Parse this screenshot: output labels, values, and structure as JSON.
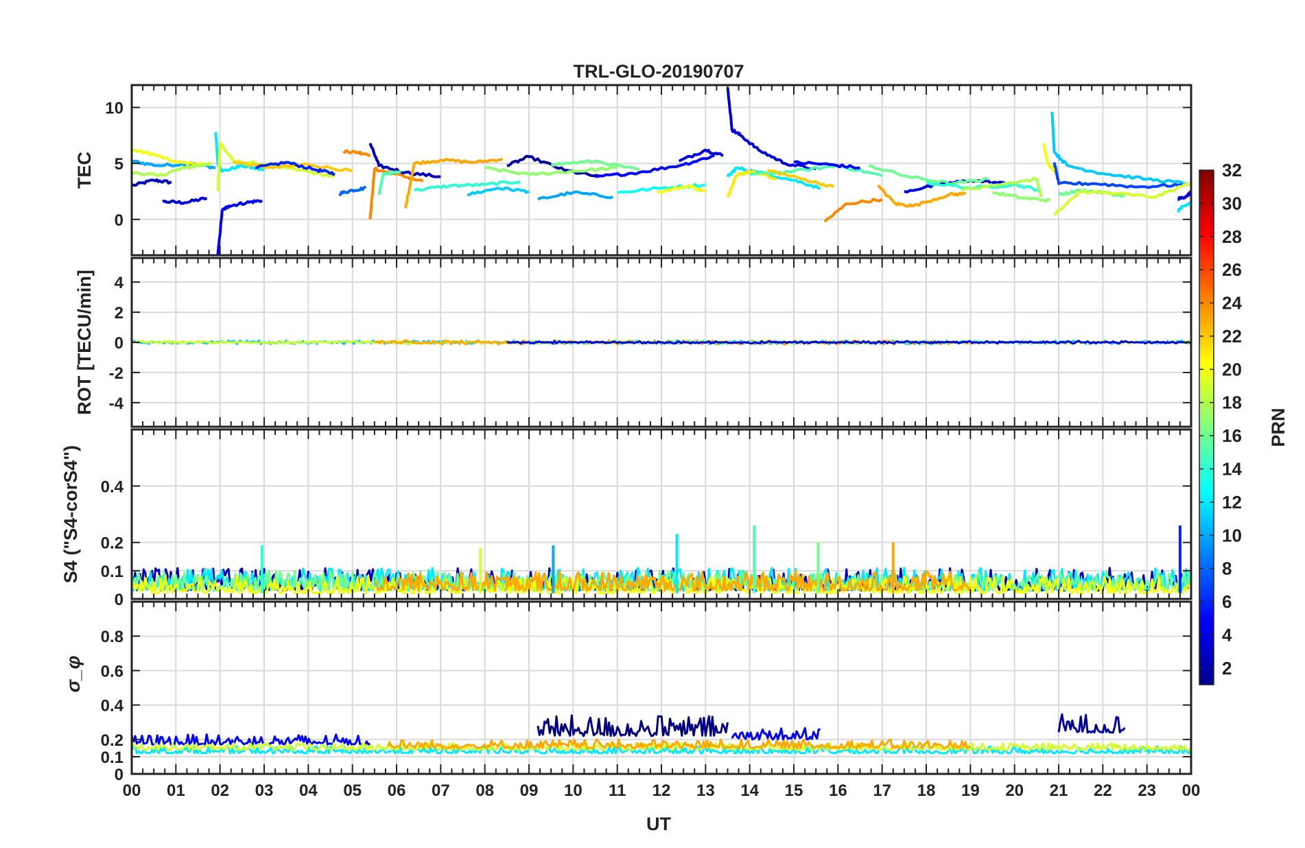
{
  "chart_data": {
    "type": "line",
    "title": "TRL-GLO-20190707",
    "xlabel": "UT",
    "x_tick_labels": [
      "00",
      "01",
      "02",
      "03",
      "04",
      "05",
      "06",
      "07",
      "08",
      "09",
      "10",
      "11",
      "12",
      "13",
      "14",
      "15",
      "16",
      "17",
      "18",
      "19",
      "20",
      "21",
      "22",
      "23",
      "00"
    ],
    "xlim": [
      0,
      24
    ],
    "grid": true,
    "panels": [
      {
        "name": "tec",
        "ylabel": "TEC",
        "ylim": [
          -3.2,
          12
        ],
        "yticks": [
          0,
          5,
          10
        ],
        "ytick_labels": [
          "0",
          "5",
          "10"
        ],
        "series": [
          {
            "prn": 3,
            "x": [
              0.0,
              0.5,
              0.9
            ],
            "y": [
              3.0,
              3.5,
              3.3
            ]
          },
          {
            "prn": 4,
            "x": [
              0.7,
              1.2,
              1.7
            ],
            "y": [
              1.6,
              1.5,
              1.9
            ]
          },
          {
            "prn": 10,
            "x": [
              0.0,
              0.6,
              1.4,
              1.9
            ],
            "y": [
              5.2,
              4.8,
              5.0,
              4.6
            ]
          },
          {
            "prn": 20,
            "x": [
              0.0,
              0.5,
              1.0,
              1.8
            ],
            "y": [
              6.2,
              5.8,
              5.1,
              4.9
            ]
          },
          {
            "prn": 18,
            "x": [
              0.0,
              0.6,
              1.2,
              1.8
            ],
            "y": [
              4.2,
              3.9,
              4.6,
              5.0
            ]
          },
          {
            "prn": 12,
            "x": [
              1.9,
              1.95,
              2.05,
              2.5,
              3.0
            ],
            "y": [
              7.8,
              5.0,
              4.3,
              4.8,
              4.4
            ]
          },
          {
            "prn": 19,
            "x": [
              1.95,
              2.0,
              2.3,
              3.0,
              3.8,
              4.6
            ],
            "y": [
              2.5,
              6.8,
              5.2,
              4.9,
              4.4,
              3.8
            ]
          },
          {
            "prn": 5,
            "x": [
              1.95,
              2.05,
              2.2,
              2.6,
              2.95
            ],
            "y": [
              -3.2,
              0.8,
              1.2,
              1.5,
              1.7
            ]
          },
          {
            "prn": 22,
            "x": [
              2.3,
              3.2,
              4.0,
              5.0
            ],
            "y": [
              5.1,
              4.6,
              4.9,
              4.3
            ]
          },
          {
            "prn": 6,
            "x": [
              2.8,
              3.5,
              4.2,
              4.6
            ],
            "y": [
              4.6,
              5.1,
              4.4,
              4.1
            ]
          },
          {
            "prn": 8,
            "x": [
              4.7,
              5.0,
              5.3
            ],
            "y": [
              2.3,
              2.6,
              2.8
            ]
          },
          {
            "prn": 24,
            "x": [
              4.8,
              5.1,
              5.4
            ],
            "y": [
              6.1,
              6.0,
              5.8
            ]
          },
          {
            "prn": 24,
            "x": [
              5.4,
              5.5,
              5.9,
              6.6
            ],
            "y": [
              0.0,
              4.5,
              4.1,
              3.4
            ]
          },
          {
            "prn": 3,
            "x": [
              5.4,
              5.6,
              6.2,
              7.0
            ],
            "y": [
              6.8,
              4.8,
              4.2,
              3.8
            ]
          },
          {
            "prn": 15,
            "x": [
              5.6,
              5.7,
              6.1
            ],
            "y": [
              2.2,
              4.1,
              4.2
            ]
          },
          {
            "prn": 23,
            "x": [
              6.2,
              6.4,
              7.0,
              7.8,
              8.4
            ],
            "y": [
              1.0,
              5.0,
              5.3,
              5.1,
              5.4
            ]
          },
          {
            "prn": 14,
            "x": [
              6.4,
              7.2,
              8.0,
              8.8
            ],
            "y": [
              2.6,
              3.0,
              3.1,
              3.4
            ]
          },
          {
            "prn": 11,
            "x": [
              7.6,
              8.3,
              9.0
            ],
            "y": [
              2.2,
              2.8,
              2.5
            ]
          },
          {
            "prn": 2,
            "x": [
              8.5,
              9.0,
              9.8,
              10.6
            ],
            "y": [
              4.8,
              5.6,
              4.4,
              3.8
            ]
          },
          {
            "prn": 17,
            "x": [
              8.0,
              9.0,
              10.0,
              11.0
            ],
            "y": [
              4.6,
              4.0,
              4.3,
              4.6
            ]
          },
          {
            "prn": 10,
            "x": [
              9.2,
              10.0,
              10.9
            ],
            "y": [
              1.8,
              2.4,
              2.0
            ]
          },
          {
            "prn": 16,
            "x": [
              9.5,
              10.5,
              11.5
            ],
            "y": [
              4.9,
              5.2,
              4.4
            ]
          },
          {
            "prn": 5,
            "x": [
              10.5,
              11.5,
              12.5,
              13.2
            ],
            "y": [
              3.8,
              4.2,
              4.9,
              5.7
            ]
          },
          {
            "prn": 13,
            "x": [
              11.0,
              12.0,
              13.0
            ],
            "y": [
              2.4,
              2.8,
              3.1
            ]
          },
          {
            "prn": 20,
            "x": [
              11.9,
              12.6,
              13.0
            ],
            "y": [
              2.4,
              3.0,
              2.5
            ]
          },
          {
            "prn": 4,
            "x": [
              12.4,
              13.0,
              13.4
            ],
            "y": [
              5.2,
              6.2,
              5.7
            ]
          },
          {
            "prn": 4,
            "x": [
              13.5,
              13.6,
              13.8,
              14.2,
              14.8,
              15.5
            ],
            "y": [
              11.8,
              8.0,
              7.5,
              6.2,
              5.0,
              4.5
            ]
          },
          {
            "prn": 12,
            "x": [
              13.5,
              13.7,
              14.2,
              15.0,
              15.6
            ],
            "y": [
              3.8,
              4.6,
              4.2,
              3.5,
              2.8
            ]
          },
          {
            "prn": 21,
            "x": [
              13.5,
              13.7,
              14.0,
              14.6
            ],
            "y": [
              2.0,
              3.9,
              4.3,
              3.6
            ]
          },
          {
            "prn": 15,
            "x": [
              14.0,
              15.0,
              16.0,
              17.0
            ],
            "y": [
              4.0,
              4.3,
              4.8,
              3.9
            ]
          },
          {
            "prn": 22,
            "x": [
              14.4,
              15.2,
              15.9
            ],
            "y": [
              4.4,
              3.6,
              2.9
            ]
          },
          {
            "prn": 5,
            "x": [
              15.0,
              15.8,
              16.5
            ],
            "y": [
              5.1,
              4.9,
              4.6
            ]
          },
          {
            "prn": 24,
            "x": [
              15.7,
              16.2,
              17.0
            ],
            "y": [
              -0.2,
              1.4,
              1.8
            ]
          },
          {
            "prn": 23,
            "x": [
              16.9,
              17.3,
              17.7,
              18.5,
              18.9
            ],
            "y": [
              3.0,
              1.4,
              1.2,
              2.2,
              2.3
            ]
          },
          {
            "prn": 4,
            "x": [
              17.5,
              18.3,
              19.0,
              19.8
            ],
            "y": [
              2.5,
              3.1,
              3.5,
              3.2
            ]
          },
          {
            "prn": 16,
            "x": [
              16.7,
              17.6,
              18.6,
              19.4
            ],
            "y": [
              4.8,
              3.8,
              3.2,
              3.6
            ]
          },
          {
            "prn": 14,
            "x": [
              18.0,
              19.0,
              20.0,
              20.6
            ],
            "y": [
              3.3,
              2.8,
              3.1,
              2.6
            ]
          },
          {
            "prn": 18,
            "x": [
              18.8,
              19.6,
              20.5,
              20.6
            ],
            "y": [
              2.6,
              3.1,
              3.6,
              2.0
            ]
          },
          {
            "prn": 17,
            "x": [
              19.5,
              20.2,
              20.8
            ],
            "y": [
              2.4,
              1.9,
              1.7
            ]
          },
          {
            "prn": 20,
            "x": [
              20.65,
              20.75,
              20.9
            ],
            "y": [
              6.8,
              5.0,
              4.4
            ]
          },
          {
            "prn": 11,
            "x": [
              20.85,
              20.9,
              21.2,
              22.0,
              23.0,
              23.9
            ],
            "y": [
              9.6,
              6.0,
              4.8,
              4.1,
              3.6,
              3.2
            ]
          },
          {
            "prn": 7,
            "x": [
              20.9,
              21.0,
              21.8,
              22.8,
              23.8
            ],
            "y": [
              5.1,
              3.2,
              3.2,
              2.9,
              3.1
            ]
          },
          {
            "prn": 16,
            "x": [
              21.0,
              21.5,
              22.0,
              22.5
            ],
            "y": [
              2.2,
              2.6,
              2.4,
              2.1
            ]
          },
          {
            "prn": 19,
            "x": [
              20.9,
              21.5,
              22.3,
              23.2,
              24.0
            ],
            "y": [
              0.4,
              2.5,
              2.3,
              2.0,
              3.3
            ]
          },
          {
            "prn": 4,
            "x": [
              23.7,
              23.9,
              24.0
            ],
            "y": [
              1.8,
              2.1,
              2.4
            ]
          },
          {
            "prn": 12,
            "x": [
              23.7,
              23.85,
              24.0
            ],
            "y": [
              0.8,
              1.2,
              1.5
            ]
          }
        ]
      },
      {
        "name": "rot",
        "ylabel": "ROT [TECU/min]",
        "ylim": [
          -5.6,
          5.6
        ],
        "yticks": [
          -4,
          -2,
          0,
          2,
          4
        ],
        "ytick_labels": [
          "-4",
          "-2",
          "0",
          "2",
          "4"
        ],
        "noise_bands": [
          {
            "prn": 11,
            "x_start": 0.0,
            "x_end": 24.0,
            "baseline": 0.0,
            "amplitude": 0.12
          },
          {
            "prn": 19,
            "x_start": 0.0,
            "x_end": 24.0,
            "baseline": 0.0,
            "amplitude": 0.1
          },
          {
            "prn": 23,
            "x_start": 5.5,
            "x_end": 19.0,
            "baseline": 0.0,
            "amplitude": 0.15
          },
          {
            "prn": 16,
            "x_start": 9.0,
            "x_end": 21.0,
            "baseline": 0.0,
            "amplitude": 0.1
          },
          {
            "prn": 4,
            "x_start": 8.5,
            "x_end": 24.0,
            "baseline": 0.0,
            "amplitude": 0.08
          }
        ]
      },
      {
        "name": "s4",
        "ylabel": "S4 (\"S4-corS4\")",
        "ylim": [
          0,
          0.6
        ],
        "yticks": [
          0,
          0.1,
          0.2,
          0.4
        ],
        "ytick_labels": [
          "0",
          "0.1",
          "0.2",
          "0.4"
        ],
        "noise_bands": [
          {
            "prn": 3,
            "x_start": 0.0,
            "x_end": 24.0,
            "baseline": 0.03,
            "amplitude": 0.08
          },
          {
            "prn": 12,
            "x_start": 0.0,
            "x_end": 24.0,
            "baseline": 0.03,
            "amplitude": 0.08
          },
          {
            "prn": 16,
            "x_start": 0.0,
            "x_end": 24.0,
            "baseline": 0.03,
            "amplitude": 0.07
          },
          {
            "prn": 20,
            "x_start": 0.0,
            "x_end": 24.0,
            "baseline": 0.02,
            "amplitude": 0.06
          },
          {
            "prn": 23,
            "x_start": 5.5,
            "x_end": 19.0,
            "baseline": 0.03,
            "amplitude": 0.07
          }
        ],
        "spikes": [
          {
            "prn": 14,
            "x": 2.95,
            "y": 0.19
          },
          {
            "prn": 10,
            "x": 9.55,
            "y": 0.19
          },
          {
            "prn": 12,
            "x": 12.35,
            "y": 0.23
          },
          {
            "prn": 15,
            "x": 14.1,
            "y": 0.26
          },
          {
            "prn": 16,
            "x": 15.55,
            "y": 0.2
          },
          {
            "prn": 23,
            "x": 17.25,
            "y": 0.2
          },
          {
            "prn": 19,
            "x": 7.9,
            "y": 0.18
          },
          {
            "prn": 6,
            "x": 23.75,
            "y": 0.26
          }
        ]
      },
      {
        "name": "sigma_phi",
        "ylabel": "σ_φ",
        "ylim": [
          0,
          1.0
        ],
        "yticks": [
          0,
          0.1,
          0.2,
          0.4,
          0.6,
          0.8
        ],
        "ytick_labels": [
          "0",
          "0.1",
          "0.2",
          "0.4",
          "0.6",
          "0.8"
        ],
        "noise_bands": [
          {
            "prn": 5,
            "x_start": 0.0,
            "x_end": 5.4,
            "baseline": 0.17,
            "amplitude": 0.06
          },
          {
            "prn": 12,
            "x_start": 0.0,
            "x_end": 24.0,
            "baseline": 0.12,
            "amplitude": 0.04
          },
          {
            "prn": 19,
            "x_start": 0.0,
            "x_end": 24.0,
            "baseline": 0.14,
            "amplitude": 0.04
          },
          {
            "prn": 23,
            "x_start": 5.8,
            "x_end": 19.0,
            "baseline": 0.15,
            "amplitude": 0.05
          },
          {
            "prn": 1,
            "x_start": 9.2,
            "x_end": 13.5,
            "baseline": 0.22,
            "amplitude": 0.12
          },
          {
            "prn": 5,
            "x_start": 13.6,
            "x_end": 15.6,
            "baseline": 0.2,
            "amplitude": 0.07
          },
          {
            "prn": 2,
            "x_start": 21.0,
            "x_end": 22.5,
            "baseline": 0.24,
            "amplitude": 0.11
          }
        ]
      }
    ],
    "colorbar": {
      "label": "PRN",
      "range": [
        1,
        32
      ],
      "tick_labels": [
        "2",
        "4",
        "6",
        "8",
        "10",
        "12",
        "14",
        "16",
        "18",
        "20",
        "22",
        "24",
        "26",
        "28",
        "30",
        "32"
      ],
      "colormap": "jet"
    }
  }
}
